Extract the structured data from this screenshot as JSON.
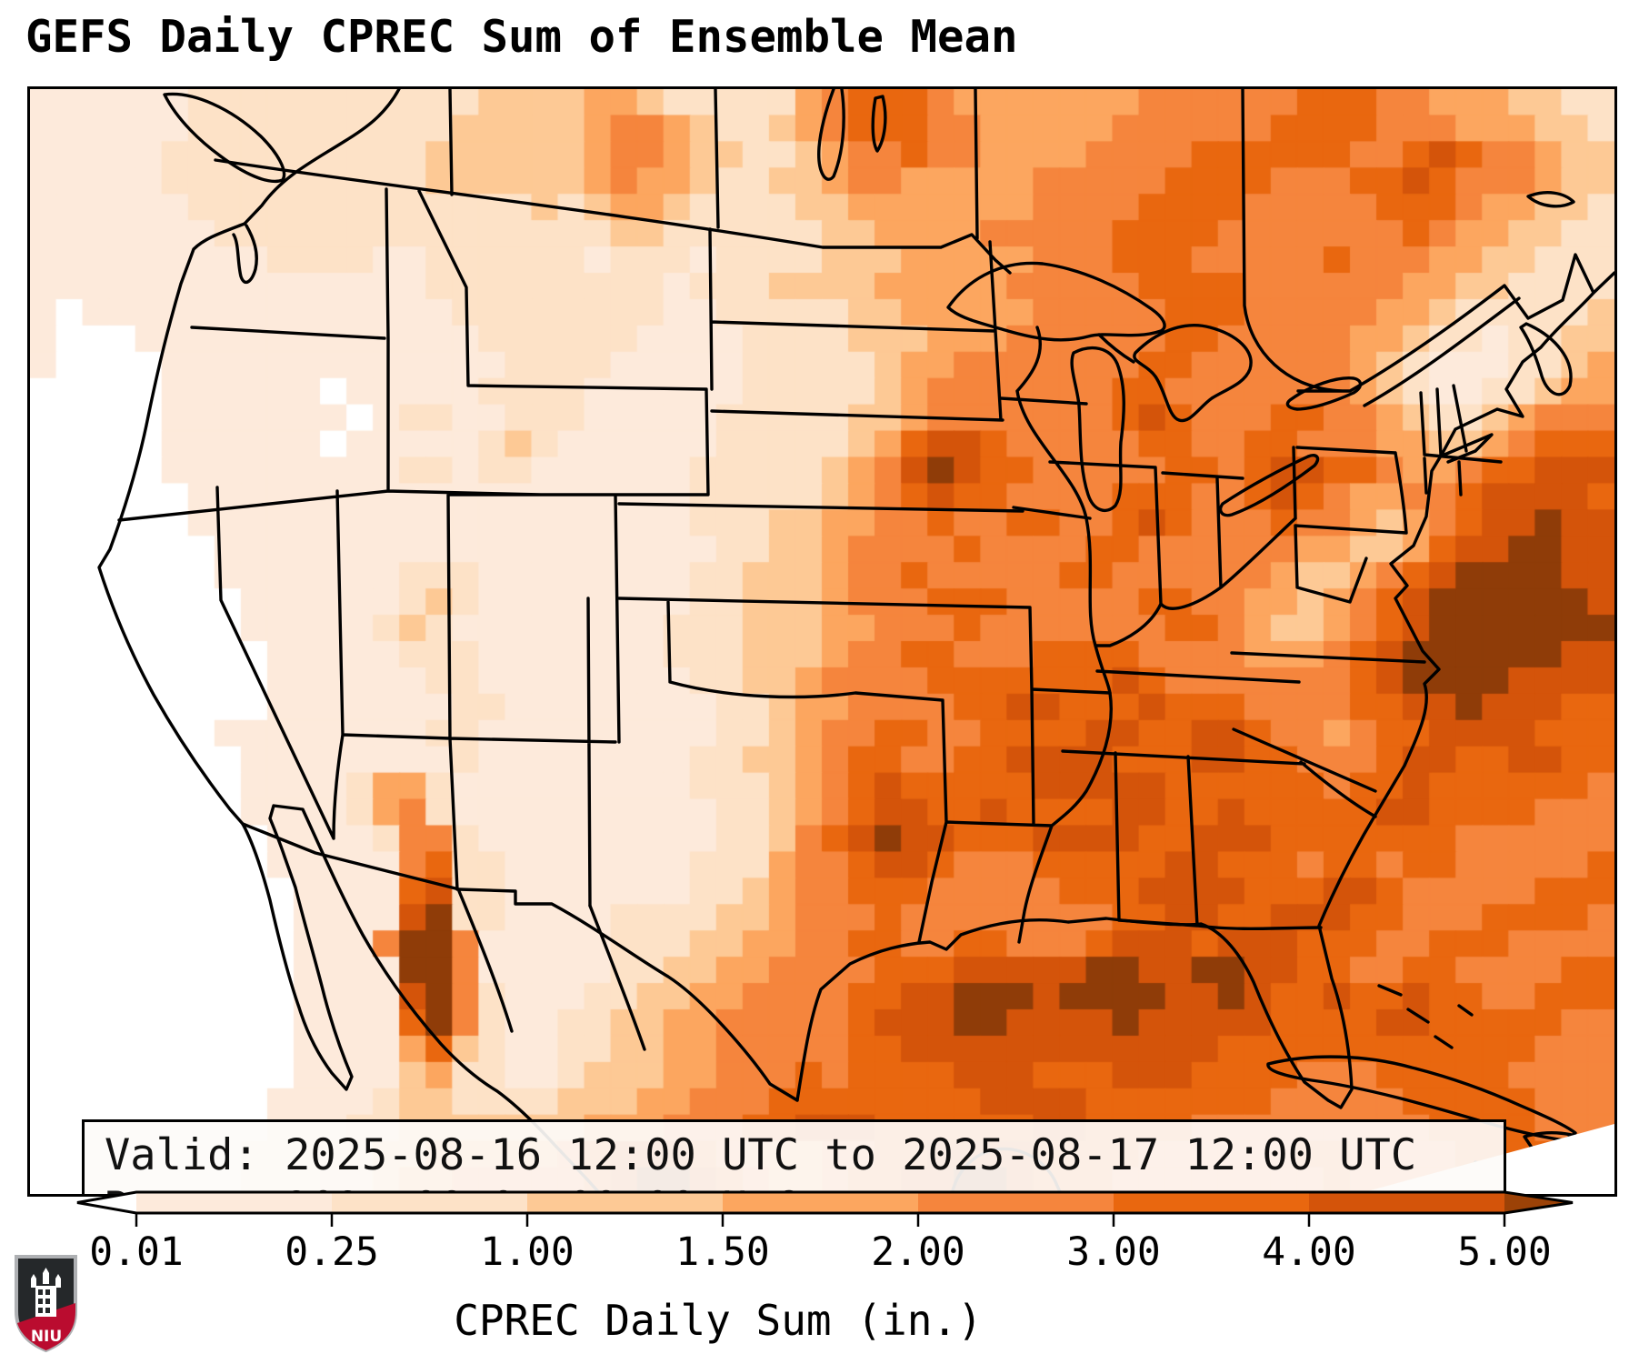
{
  "title": "GEFS Daily CPREC Sum of Ensemble Mean",
  "info_box": {
    "valid_line": "Valid: 2025-08-16 12:00 UTC to 2025-08-17 12:00 UTC",
    "run_line": "Run:   2025-08-07 00:00 UTC"
  },
  "colorbar": {
    "label": "CPREC Daily Sum (in.)",
    "ticks": [
      "0.01",
      "0.25",
      "1.00",
      "1.50",
      "2.00",
      "3.00",
      "4.00",
      "5.00"
    ],
    "segment_colors": [
      "#fdeadb",
      "#fde2c7",
      "#fdc995",
      "#fca65f",
      "#f5853d",
      "#e9670f",
      "#d4540a"
    ],
    "under_color": "#ffffff",
    "over_color": "#9c4207",
    "extend": "both",
    "outline_color": "#000000"
  },
  "logo": {
    "text": "NIU",
    "shield_black": "#25282a",
    "shield_red": "#ba0c2f",
    "border_gray": "#aeb0b3"
  },
  "chart_data": {
    "type": "heatmap",
    "title": "GEFS Daily CPREC Sum of Ensemble Mean",
    "variable": "CPREC Daily Sum (in.)",
    "valid": "2025-08-16 12:00 UTC to 2025-08-17 12:00 UTC",
    "run": "2025-08-07 00:00 UTC",
    "levels_inches": [
      0.01,
      0.25,
      1.0,
      1.5,
      2.0,
      3.0,
      4.0,
      5.0
    ],
    "legend_position": "bottom",
    "grid_cols": 60,
    "grid_rows": 42,
    "palette": [
      "#ffffff",
      "#fdeadb",
      "#fde2c7",
      "#fdc995",
      "#fca65f",
      "#f5853d",
      "#e9670f",
      "#d4540a",
      "#8f3c08"
    ],
    "grid": [
      [
        "1111112222",
        "2222222333",
        "3443222224",
        "5666544444",
        "4455555566",
        "6554443322"
      ],
      [
        "1111112222",
        "2222223333",
        "3455432234",
        "5666554444",
        "4555555666",
        "6555444332"
      ],
      [
        "1111122222",
        "2222233333",
        "3455433223",
        "4556554444",
        "5555666666",
        "5567655433"
      ],
      [
        "1111122222",
        "2222233333",
        "3454432233",
        "4554444455",
        "5556666555",
        "6676555433"
      ],
      [
        "1111112222",
        "2222222223",
        "2344322223",
        "3444444455",
        "5566665555",
        "5666544332"
      ],
      [
        "1111111222",
        "2222222222",
        "2233222222",
        "3344445555",
        "5666655555",
        "5565443322"
      ],
      [
        "1111111112",
        "2221122222",
        "2122212222",
        "3334444455",
        "5666555556",
        "5554433222"
      ],
      [
        "1111111111",
        "1111122222",
        "2222122233",
        "3344444555",
        "5566665555",
        "5544332222"
      ],
      [
        "1011111111",
        "1111112222",
        "2222112222",
        "2334444455",
        "5556665555",
        "5443222223"
      ],
      [
        "1000111111",
        "1111111222",
        "2221111222",
        "2333444555",
        "5556655555",
        "4432212233"
      ],
      [
        "1000011111",
        "1111111122",
        "2211111222",
        "2234455555",
        "5566555555",
        "4321112234"
      ],
      [
        "0000011111",
        "1011111222",
        "2111111222",
        "2234555555",
        "5665555555",
        "4321122344"
      ],
      [
        "0000011111",
        "1101221122",
        "2111112222",
        "2334555555",
        "5676555665",
        "5432234555"
      ],
      [
        "0000011111",
        "1011111232",
        "1111112222",
        "2346776555",
        "5566556655",
        "5443345666"
      ],
      [
        "0000011111",
        "1111221221",
        "1111122222",
        "3457876655",
        "5556656776",
        "6544566777"
      ],
      [
        "0000001111",
        "1111111111",
        "1111122222",
        "3456766555",
        "5666556765",
        "4455677776"
      ],
      [
        "0000001111",
        "1111111111",
        "1111122233",
        "4455655665",
        "5676555655",
        "4345677877"
      ],
      [
        "0000000111",
        "1111111111",
        "1111112233",
        "4555565555",
        "6655555544",
        "3346778877"
      ],
      [
        "0000000111",
        "1111222111",
        "1111122333",
        "4556555556",
        "6555555433",
        "4567888877"
      ],
      [
        "0000000011",
        "1111232111",
        "1111122333",
        "4555666555",
        "5566554434",
        "5678888887"
      ],
      [
        "0000000011",
        "1112321111",
        "1111222333",
        "4455565555",
        "5556654334",
        "5678888888"
      ],
      [
        "0000000001",
        "1111222111",
        "1111222333",
        "4556655566",
        "6655554445",
        "6788888877"
      ],
      [
        "0000000001",
        "1111122111",
        "1111122334",
        "5555666666",
        "6765555555",
        "6788887777"
      ],
      [
        "0000000001",
        "1111112211",
        "1111112234",
        "4555566776",
        "6676665555",
        "6677877766"
      ],
      [
        "0000000111",
        "1111122111",
        "1111112234",
        "5566556666",
        "7766776554",
        "5667777666"
      ],
      [
        "0000000011",
        "1111112111",
        "1111122334",
        "5665566777",
        "7666776655",
        "5677667766"
      ],
      [
        "0000000011",
        "1124421111",
        "1111122234",
        "5676666677",
        "7776666665",
        "6676666665"
      ],
      [
        "0000000011",
        "1124521111",
        "1111112234",
        "5677667666",
        "6776676666",
        "6776666555"
      ],
      [
        "0000000001",
        "1112552111",
        "1111112235",
        "6787766677",
        "7766777666",
        "6666555555"
      ],
      [
        "0000000001",
        "1111562211",
        "1111122245",
        "5677655566",
        "6667766656",
        "6566555556"
      ],
      [
        "0000000000",
        "1111672211",
        "1111122345",
        "5666555556",
        "6677776667",
        "7655555666"
      ],
      [
        "0000000000",
        "1111782211",
        "1122223345",
        "5565555555",
        "5667766777",
        "6655566665"
      ],
      [
        "0000000000",
        "1115885111",
        "1122233445",
        "5665566555",
        "6777677766",
        "6556665555"
      ],
      [
        "0000000000",
        "1111885111",
        "1122334455",
        "5566677777",
        "8877887766",
        "5566555566"
      ],
      [
        "0000000000",
        "1111785211",
        "1223344555",
        "5667788878",
        "8887787667",
        "6676655666"
      ],
      [
        "0000000000",
        "1111685211",
        "2233445555",
        "5677788777",
        "7877777666",
        "6776666655"
      ],
      [
        "0000000000",
        "1111463211",
        "2233445555",
        "5667777777",
        "7777766666",
        "6666666555"
      ],
      [
        "0000000000",
        "1111342211",
        "2333445556",
        "5666677766",
        "6777666655",
        "5666665555"
      ],
      [
        "0000000001",
        "1112332222",
        "3334455566",
        "6666667777",
        "6666666555",
        "5566666555"
      ],
      [
        "0000000001",
        "1122333333",
        "3444555667",
        "7766666677",
        "6666555555",
        "5556666555"
      ],
      [
        "0000000011",
        "1223344444",
        "5677765444",
        "5566777766",
        "6655555566",
        "5555666655"
      ],
      [
        "0000000011",
        "1223445555",
        "5678876544",
        "5667788766",
        "6555555556",
        "5555566666"
      ]
    ]
  }
}
